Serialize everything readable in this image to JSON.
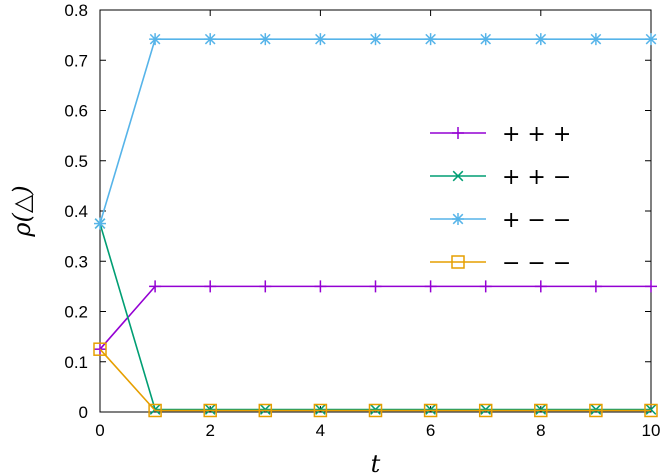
{
  "chart_data": {
    "type": "line",
    "title": "",
    "xlabel": "t",
    "ylabel": "ρ(△)",
    "xlim": [
      0,
      10
    ],
    "ylim": [
      0,
      0.8
    ],
    "xticks": [
      0,
      2,
      4,
      6,
      8,
      10
    ],
    "yticks": [
      0,
      0.1,
      0.2,
      0.3,
      0.4,
      0.5,
      0.6,
      0.7,
      0.8
    ],
    "x": [
      0,
      1,
      2,
      3,
      4,
      5,
      6,
      7,
      8,
      9,
      10
    ],
    "legend_position": "center-right",
    "grid": false,
    "series": [
      {
        "name": "+ + +",
        "color": "#9400d3",
        "marker": "plus",
        "values": [
          0.125,
          0.25,
          0.25,
          0.25,
          0.25,
          0.25,
          0.25,
          0.25,
          0.25,
          0.25,
          0.25
        ]
      },
      {
        "name": "+ + −",
        "color": "#009e73",
        "marker": "x",
        "values": [
          0.375,
          0.005,
          0.005,
          0.005,
          0.005,
          0.005,
          0.005,
          0.005,
          0.005,
          0.005,
          0.005
        ]
      },
      {
        "name": "+ − −",
        "color": "#56b4e9",
        "marker": "star",
        "values": [
          0.375,
          0.742,
          0.742,
          0.742,
          0.742,
          0.742,
          0.742,
          0.742,
          0.742,
          0.742,
          0.742
        ]
      },
      {
        "name": "− − −",
        "color": "#e69f00",
        "marker": "square",
        "values": [
          0.125,
          0.003,
          0.003,
          0.003,
          0.003,
          0.003,
          0.003,
          0.003,
          0.003,
          0.003,
          0.003
        ]
      }
    ]
  }
}
